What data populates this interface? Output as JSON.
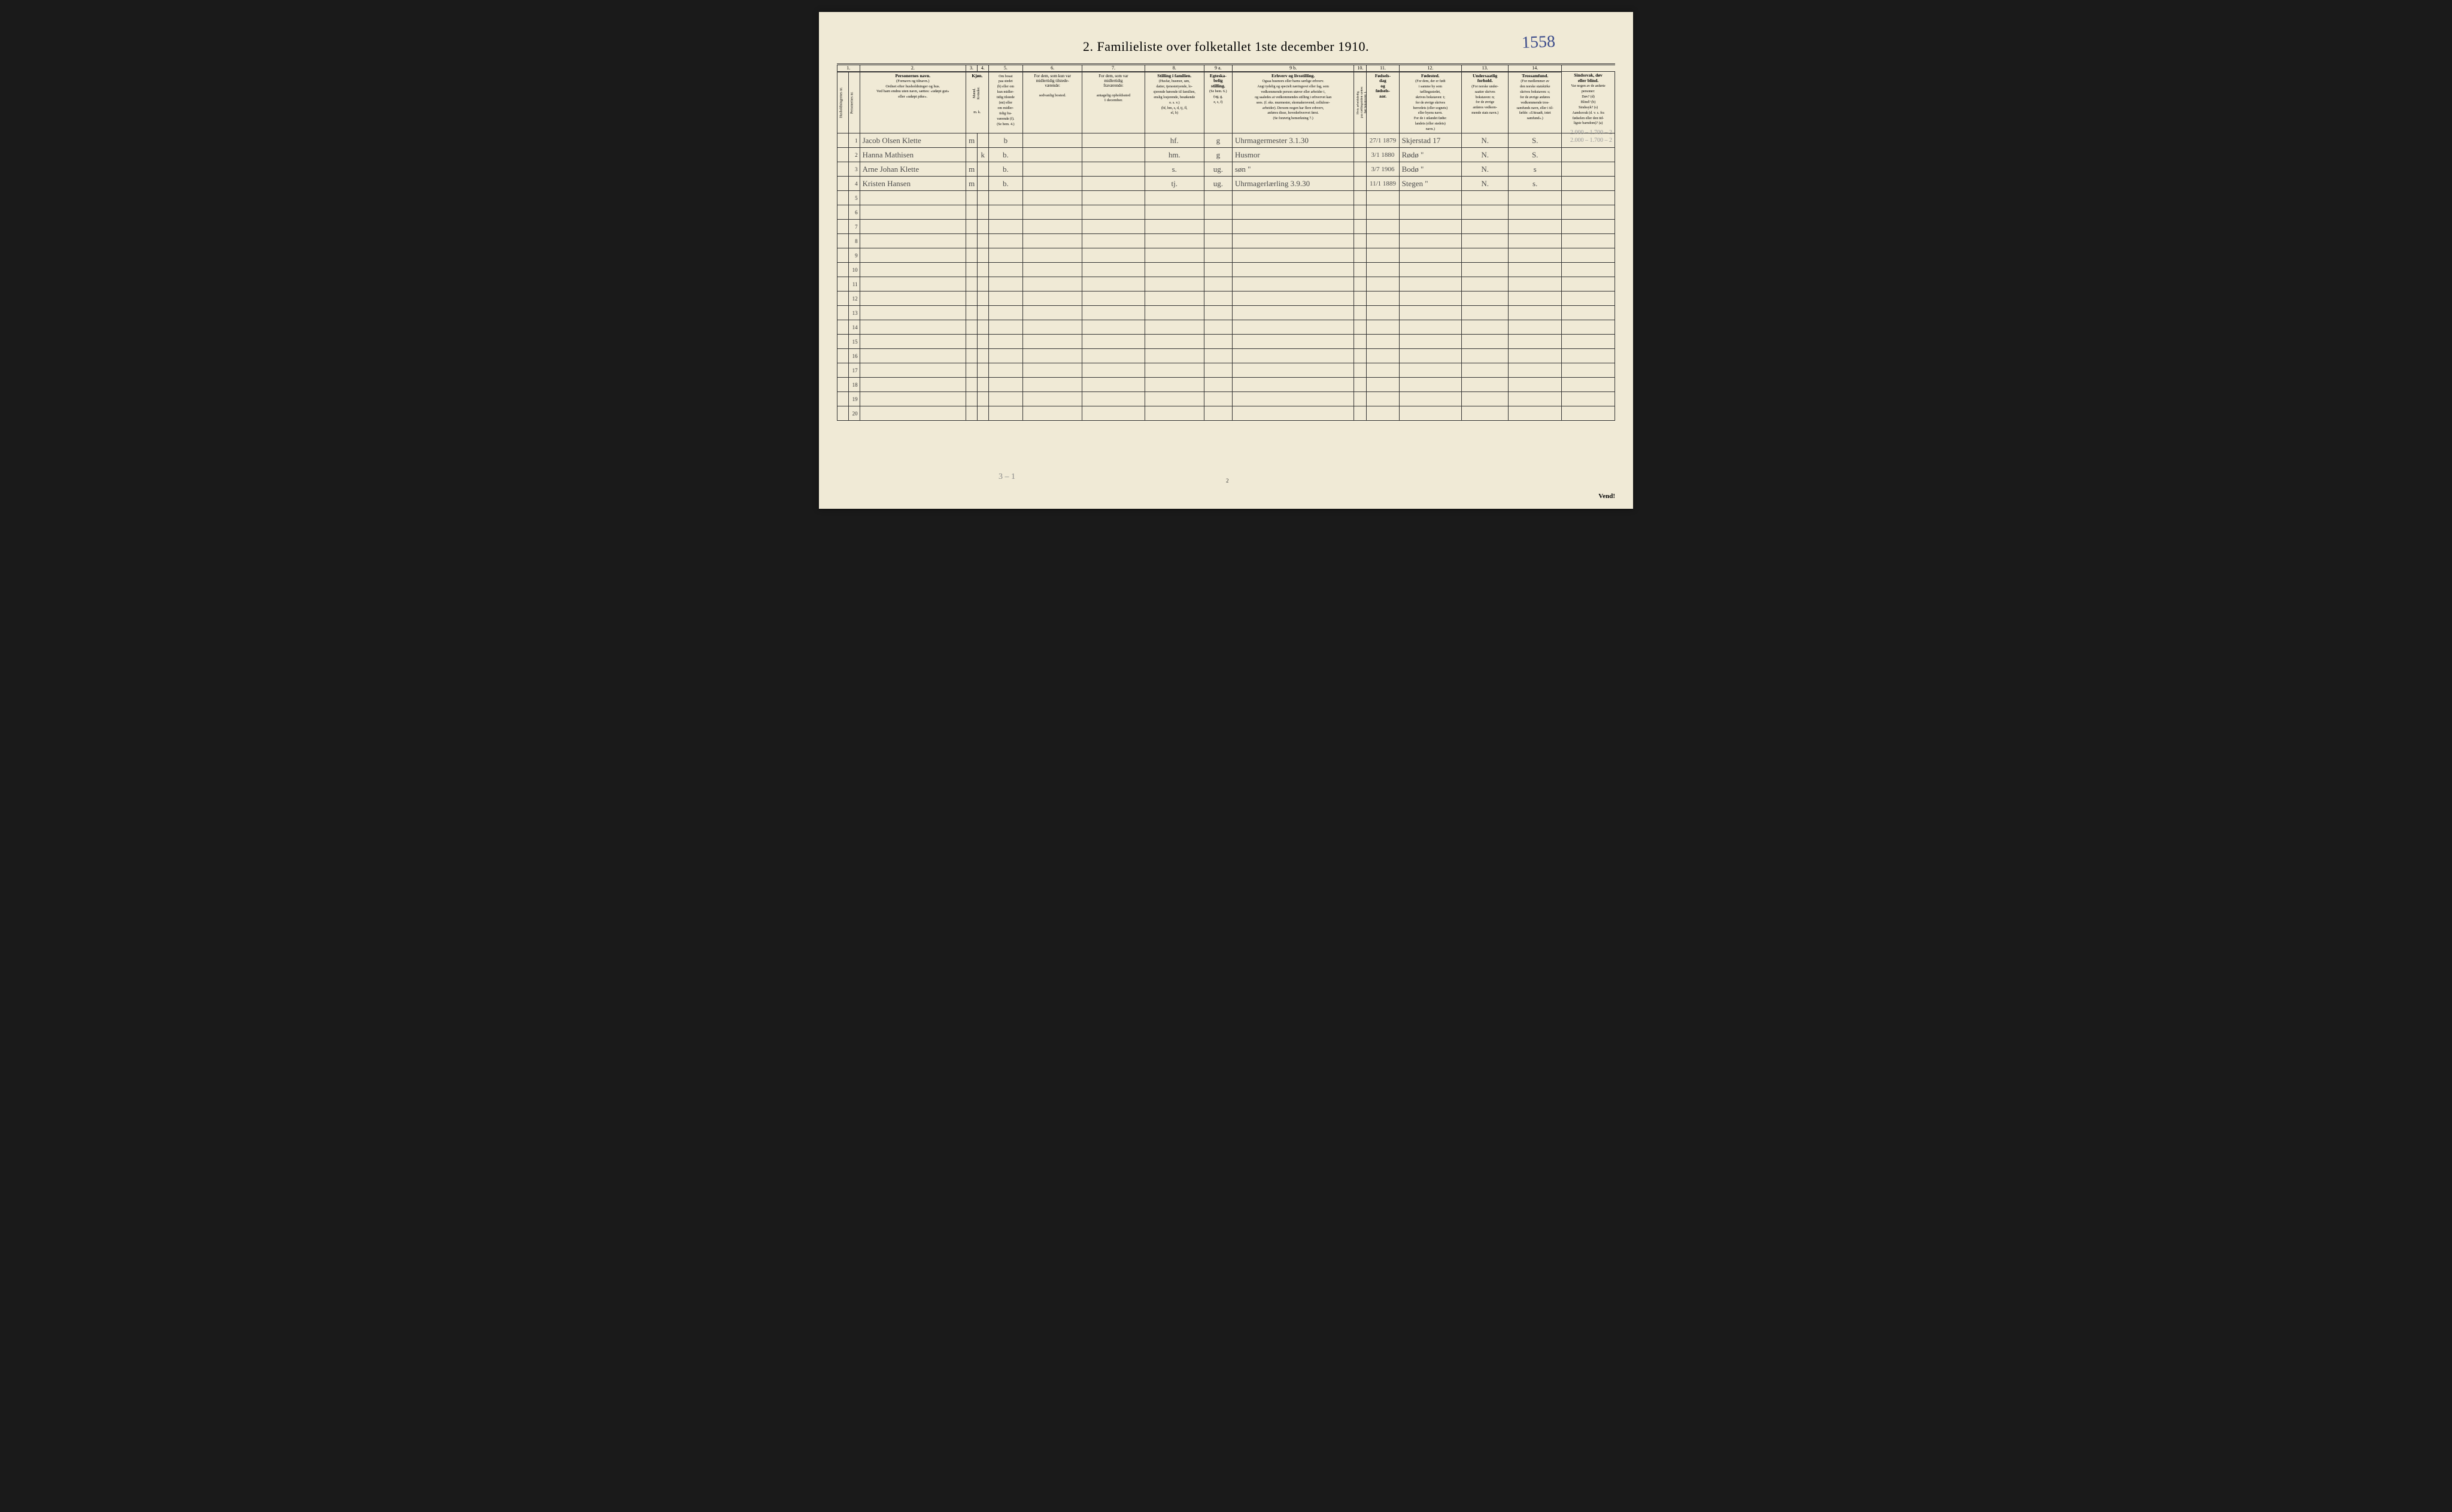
{
  "handwritten_top": "1558",
  "title": "2. Familieliste over folketallet 1ste december 1910.",
  "column_numbers": [
    "1.",
    "",
    "2.",
    "3.",
    "4.",
    "5.",
    "6.",
    "7.",
    "8.",
    "9 a.",
    "9 b.",
    "10.",
    "11.",
    "12.",
    "13.",
    "14."
  ],
  "headers": {
    "c1a": "Husholdningernes nr.",
    "c1b": "Personernes nr.",
    "c2": "Personernes navn.",
    "c2_sub": "(Fornavn og tilnavn.)\nOrdnet efter husholdninger og hus.\nVed barn endnu uten navn, sættes: «udøpt gut»\neller «udøpt pike».",
    "c3": "Kjøn.",
    "c3_sub": "Mænd.\nKvinder.",
    "c3_foot": "m. k.",
    "c4": "Om bosat\npaa stedet\n(b) eller om\nkun midler-\ntidig tilstede\n(mt) eller\nom midler-\ntidig fra-\nværende (f).\n(Se bem. 4.)",
    "c5": "For dem, som kun var\nmidlertidig tilstede-\nværende:",
    "c5_sub": "sedvanlig bosted.",
    "c6": "For dem, som var\nmidlertidig\nfraværende:",
    "c6_sub": "antagelig opholdssted\n1 december.",
    "c7": "Stilling i familien.",
    "c7_sub": "(Husfar, husmor, søn,\ndatter, tjenestetyende, lo-\nsjerende hørende til familien,\nenslig losjerende, besøkende\no. s. v.)\n(hf, hm, s, d, tj, fl,\nel, b)",
    "c8": "Egteska-\nbelig\nstilling.",
    "c8_sub": "(Se bem. 6.)\n(ug, g,\ne, s, f)",
    "c9a": "Erhverv og livsstilling.",
    "c9a_sub": "Ogsaa husmors eller barns særlige erhverv.\nAngi tydelig og specielt næringsvei eller fag, som\nvedkommende person utøver eller arbeider i,\nog saaledes at vedkommendes stilling i erhvervet kan\nsees. (f. eks. murmester, skomakersvend, cellulose-\narbeider). Dersom nogen har flere erhverv,\nanføres disse, hovederhvervet først.\n(Se forøvrig bemerkning 7.)",
    "c9b": "Hvis arbeidsledig\npaa tællingstiden sættes\nher bokstaven: l.",
    "c10": "Fødsels-\ndag\nog\nfødsels-\naar.",
    "c11": "Fødested.",
    "c11_sub": "(For dem, der er født\ni samme by som\ntællingsstedet,\nskrives bokstaven: t;\nfor de øvrige skrives\nherredets (eller sognets)\neller byens navn.\nFor de i utlandet fødte:\nlandets (eller stedets)\nnavn.)",
    "c12": "Undersaatlig\nforhold.",
    "c12_sub": "(For norske under-\nsaatter skrives\nbokstaven: n;\nfor de øvrige\nanføres vedkom-\nmende stats navn.)",
    "c13": "Trossamfund.",
    "c13_sub": "(For medlemmer av\nden norske statskirke\nskrives bokstaven: s;\nfor de øvrige anføres\nvedkommende tros-\nsamfunds navn, eller i til-\nfælde: «Uttraadt, intet\nsamfund».)",
    "c14": "Sindssvak, døv\neller blind.",
    "c14_sub": "Var nogen av de anførte\npersoner:\nDøv?       (d)\nBlind?     (b)\nSindssyk?  (s)\nAandssvak (d. v. s. fra\nfødselen eller den tid-\nligste barndom)? (a)"
  },
  "rows": [
    {
      "n": "1",
      "name": "Jacob Olsen Klette",
      "sex": "m",
      "res": "b",
      "c5": "",
      "c6": "",
      "c7": "hf.",
      "c8": "g",
      "c9a": "Uhrmagermester  3.1.30",
      "c9b": "",
      "c10": "27/1 1879",
      "c11": "Skjerstad     17",
      "c12": "N.",
      "c13": "S.",
      "c14": ""
    },
    {
      "n": "2",
      "name": "Hanna Mathisen",
      "sex": "k",
      "res": "b.",
      "c5": "",
      "c6": "",
      "c7": "hm.",
      "c8": "g",
      "c9a": "Husmor",
      "c9b": "",
      "c10": "3/1 1880",
      "c11": "Rødø \"",
      "c12": "N.",
      "c13": "S.",
      "c14": ""
    },
    {
      "n": "3",
      "name": "Arne Johan Klette",
      "sex": "m",
      "res": "b.",
      "c5": "",
      "c6": "",
      "c7": "s.",
      "c8": "ug.",
      "c9a": "søn  \"",
      "c9b": "",
      "c10": "3/7 1906",
      "c11": "Bodø \"",
      "c12": "N.",
      "c13": "s",
      "c14": ""
    },
    {
      "n": "4",
      "name": "Kristen Hansen",
      "sex": "m",
      "res": "b.",
      "c5": "",
      "c6": "",
      "c7": "tj.",
      "c8": "ug.",
      "c9a": "Uhrmagerlærling  3.9.30",
      "c9b": "",
      "c10": "11/1 1889",
      "c11": "Stegen \"",
      "c12": "N.",
      "c13": "s.",
      "c14": ""
    }
  ],
  "empty_rows_start": 5,
  "empty_rows_end": 20,
  "bottom_pencil": "3 – 1",
  "page_num": "2",
  "vend": "Vend!",
  "pencil_margin": "2.000 – 1.700 – 2\n2.000 – 1.700 – 2",
  "colwidths": [
    "18px",
    "18px",
    "170px",
    "18px",
    "18px",
    "55px",
    "95px",
    "100px",
    "95px",
    "45px",
    "195px",
    "20px",
    "52px",
    "100px",
    "75px",
    "85px",
    "85px"
  ],
  "colors": {
    "paper": "#f0ead6",
    "ink": "#333",
    "pen_blue": "#3a4a8a",
    "pencil": "#888"
  }
}
